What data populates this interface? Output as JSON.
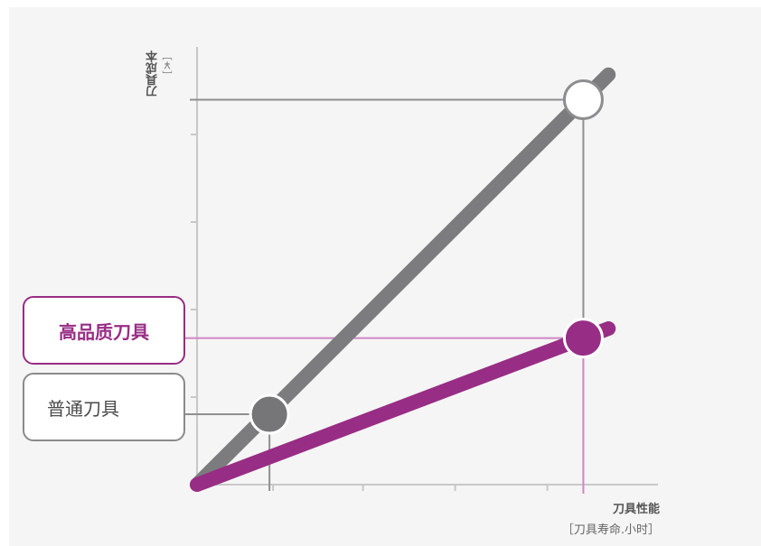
{
  "chart_data": {
    "type": "line",
    "xlabel": "刀具性能",
    "xlabel_unit": "［刀具寿命.小时］",
    "ylabel": "刀具成本",
    "ylabel_unit": "［￥］",
    "series": [
      {
        "name": "高品质刀具",
        "color": "#982d85",
        "x": [
          0,
          0.88
        ],
        "y": [
          0,
          0.375
        ]
      },
      {
        "name": "普通刀具",
        "color": "#7c7c7e",
        "x": [
          0,
          0.88
        ],
        "y": [
          0,
          0.985
        ]
      }
    ],
    "markers": [
      {
        "series": "普通刀具",
        "x": 0.165,
        "y": 0.18,
        "fill": "#767679",
        "stroke": "#ffffff"
      },
      {
        "series": "普通刀具",
        "x": 0.88,
        "y": 0.985,
        "fill": "#ffffff",
        "stroke": "#8d8d8f"
      },
      {
        "series": "高品质刀具",
        "x": 0.88,
        "y": 0.375,
        "fill": "#982d85",
        "stroke": "#ffffff"
      }
    ],
    "xlim": [
      0,
      1.05
    ],
    "ylim": [
      0,
      1.12
    ],
    "grid": false
  },
  "legend": {
    "high_quality": "高品质刀具",
    "standard": "普通刀具"
  },
  "colors": {
    "accent": "#982d85",
    "gray": "#7c7c7e",
    "background": "#f4f5f4"
  }
}
